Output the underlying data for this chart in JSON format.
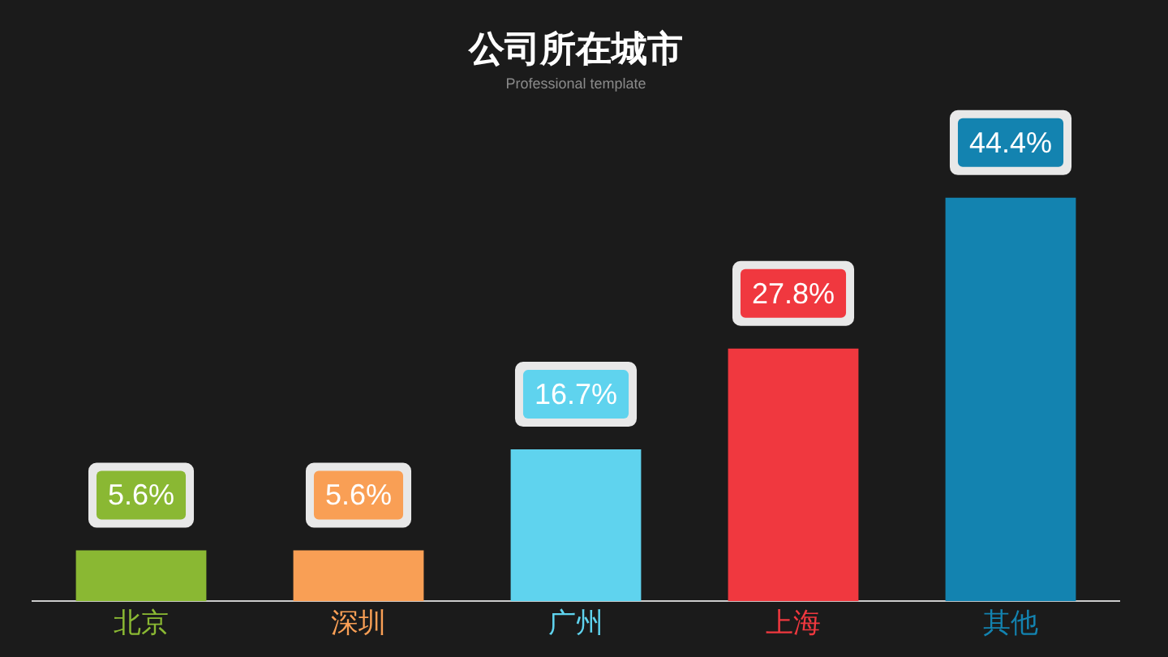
{
  "chart_data": {
    "type": "bar",
    "title": "公司所在城市",
    "subtitle": "Professional template",
    "categories": [
      "北京",
      "深圳",
      "广州",
      "上海",
      "其他"
    ],
    "values": [
      5.6,
      5.6,
      16.7,
      27.8,
      44.4
    ],
    "value_labels": [
      "5.6%",
      "5.6%",
      "16.7%",
      "27.8%",
      "44.4%"
    ],
    "colors": [
      "#8ab833",
      "#f99f55",
      "#5fd3ee",
      "#f0383f",
      "#1383b0"
    ],
    "legend": false
  }
}
